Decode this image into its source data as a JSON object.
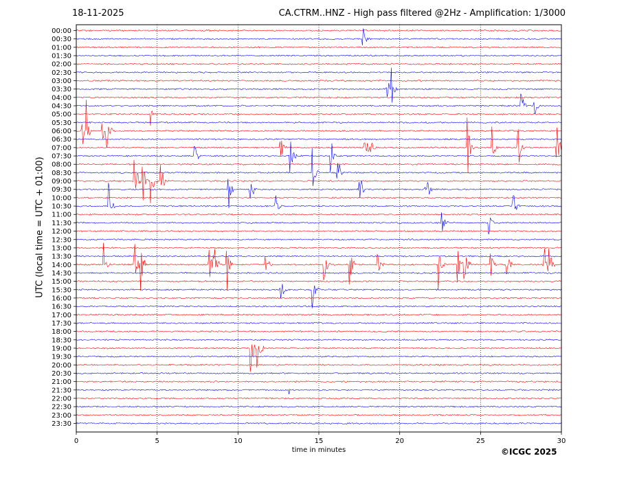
{
  "header": {
    "date": "18-11-2025",
    "title": "CA.CTRM..HNZ - High pass filtered @2Hz - Amplification: 1/3000"
  },
  "footer": {
    "copyright": "©ICGC 2025"
  },
  "colors": {
    "trace_a": "#ff0000",
    "trace_b": "#0000ff",
    "axes": "#000000",
    "grid": "#000000"
  },
  "chart_data": {
    "type": "line",
    "title": "CA.CTRM..HNZ - High pass filtered @2Hz - Amplification: 1/3000",
    "xlabel": "time in minutes",
    "ylabel": "UTC (local time = UTC + 01:00)",
    "xlim": [
      0,
      30
    ],
    "x_ticks": [
      "0",
      "5",
      "10",
      "15",
      "20",
      "25",
      "30"
    ],
    "grid": "vertical dotted lines at x = 5, 10, 15, 20, 25",
    "y_tick_labels": [
      "00:00",
      "00:30",
      "01:00",
      "01:30",
      "02:00",
      "02:30",
      "03:00",
      "03:30",
      "04:00",
      "04:30",
      "05:00",
      "05:30",
      "06:00",
      "06:30",
      "07:00",
      "07:30",
      "08:00",
      "08:30",
      "09:00",
      "09:30",
      "10:00",
      "10:30",
      "11:00",
      "11:30",
      "12:00",
      "12:30",
      "13:00",
      "13:30",
      "14:00",
      "14:30",
      "15:00",
      "15:30",
      "16:00",
      "16:30",
      "17:00",
      "17:30",
      "18:00",
      "18:30",
      "19:00",
      "19:30",
      "20:00",
      "20:30",
      "21:00",
      "21:30",
      "22:00",
      "22:30",
      "23:00",
      "23:30"
    ],
    "trace_colors": "alternating red / blue per 30-minute line, starting with red at 00:00",
    "events": [
      {
        "time": "00:30",
        "minute": 17.7,
        "amplitude": 1.0
      },
      {
        "time": "03:30",
        "minute": 19.2,
        "amplitude": 0.7
      },
      {
        "time": "03:30",
        "minute": 19.5,
        "amplitude": 0.7
      },
      {
        "time": "04:30",
        "minute": 27.5,
        "amplitude": 0.6
      },
      {
        "time": "04:30",
        "minute": 28.3,
        "amplitude": 0.6
      },
      {
        "time": "05:00",
        "minute": 4.6,
        "amplitude": 0.6
      },
      {
        "time": "06:00",
        "minute": 0.3,
        "amplitude": 1.0
      },
      {
        "time": "06:00",
        "minute": 0.6,
        "amplitude": 1.0
      },
      {
        "time": "06:00",
        "minute": 1.6,
        "amplitude": 0.8
      },
      {
        "time": "06:00",
        "minute": 1.85,
        "amplitude": 1.0
      },
      {
        "time": "07:00",
        "minute": 12.6,
        "amplitude": 1.0
      },
      {
        "time": "07:00",
        "minute": 17.8,
        "amplitude": 1.0
      },
      {
        "time": "07:00",
        "minute": 18.2,
        "amplitude": 0.5
      },
      {
        "time": "07:00",
        "minute": 24.2,
        "amplitude": 1.0
      },
      {
        "time": "07:00",
        "minute": 25.7,
        "amplitude": 1.0
      },
      {
        "time": "07:00",
        "minute": 27.3,
        "amplitude": 1.0
      },
      {
        "time": "07:00",
        "minute": 29.7,
        "amplitude": 1.0
      },
      {
        "time": "07:30",
        "minute": 7.3,
        "amplitude": 0.6
      },
      {
        "time": "07:30",
        "minute": 13.2,
        "amplitude": 1.0
      },
      {
        "time": "07:30",
        "minute": 15.7,
        "amplitude": 1.0
      },
      {
        "time": "08:30",
        "minute": 14.6,
        "amplitude": 1.0
      },
      {
        "time": "08:30",
        "minute": 16.1,
        "amplitude": 1.0
      },
      {
        "time": "09:00",
        "minute": 3.6,
        "amplitude": 1.0
      },
      {
        "time": "09:00",
        "minute": 4.1,
        "amplitude": 1.0
      },
      {
        "time": "09:00",
        "minute": 4.6,
        "amplitude": 1.0
      },
      {
        "time": "09:00",
        "minute": 5.2,
        "amplitude": 1.0
      },
      {
        "time": "09:30",
        "minute": 9.4,
        "amplitude": 1.0
      },
      {
        "time": "09:30",
        "minute": 10.7,
        "amplitude": 1.0
      },
      {
        "time": "09:30",
        "minute": 17.5,
        "amplitude": 1.0
      },
      {
        "time": "09:30",
        "minute": 21.6,
        "amplitude": 1.0
      },
      {
        "time": "10:30",
        "minute": 2.0,
        "amplitude": 0.8
      },
      {
        "time": "10:30",
        "minute": 12.3,
        "amplitude": 1.0
      },
      {
        "time": "10:30",
        "minute": 27.0,
        "amplitude": 1.0
      },
      {
        "time": "11:30",
        "minute": 22.6,
        "amplitude": 0.6
      },
      {
        "time": "11:30",
        "minute": 25.5,
        "amplitude": 1.0
      },
      {
        "time": "14:00",
        "minute": 1.7,
        "amplitude": 0.8
      },
      {
        "time": "14:00",
        "minute": 3.6,
        "amplitude": 1.0
      },
      {
        "time": "14:00",
        "minute": 4.0,
        "amplitude": 1.0
      },
      {
        "time": "14:00",
        "minute": 8.2,
        "amplitude": 1.0
      },
      {
        "time": "14:00",
        "minute": 8.5,
        "amplitude": 1.0
      },
      {
        "time": "14:00",
        "minute": 9.3,
        "amplitude": 1.0
      },
      {
        "time": "14:00",
        "minute": 11.7,
        "amplitude": 1.0
      },
      {
        "time": "14:00",
        "minute": 15.3,
        "amplitude": 1.0
      },
      {
        "time": "14:00",
        "minute": 16.9,
        "amplitude": 1.0
      },
      {
        "time": "14:00",
        "minute": 18.6,
        "amplitude": 1.0
      },
      {
        "time": "14:00",
        "minute": 22.4,
        "amplitude": 1.0
      },
      {
        "time": "14:00",
        "minute": 23.6,
        "amplitude": 1.0
      },
      {
        "time": "14:00",
        "minute": 24.0,
        "amplitude": 1.0
      },
      {
        "time": "14:00",
        "minute": 25.6,
        "amplitude": 1.0
      },
      {
        "time": "14:00",
        "minute": 26.6,
        "amplitude": 0.8
      },
      {
        "time": "14:00",
        "minute": 28.9,
        "amplitude": 1.0
      },
      {
        "time": "14:00",
        "minute": 29.2,
        "amplitude": 0.8
      },
      {
        "time": "15:30",
        "minute": 12.6,
        "amplitude": 1.0
      },
      {
        "time": "15:30",
        "minute": 14.6,
        "amplitude": 1.0
      },
      {
        "time": "19:00",
        "minute": 10.8,
        "amplitude": 1.0
      },
      {
        "time": "19:00",
        "minute": 11.2,
        "amplitude": 1.0
      },
      {
        "time": "21:30",
        "minute": 13.1,
        "amplitude": 0.2
      }
    ]
  }
}
